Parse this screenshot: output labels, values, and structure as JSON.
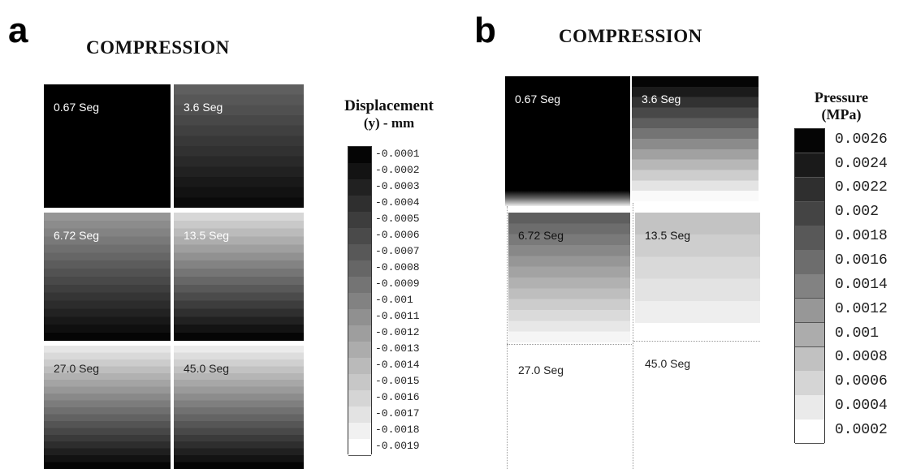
{
  "panel_a": {
    "letter": "a",
    "title": "COMPRESSION",
    "legend_title_line1": "Displacement",
    "legend_title_line2": "(y) - mm",
    "legend_labels": [
      "-0.0001",
      "-0.0002",
      "-0.0003",
      "-0.0004",
      "-0.0005",
      "-0.0006",
      "-0.0007",
      "-0.0008",
      "-0.0009",
      "-0.001",
      "-0.0011",
      "-0.0012",
      "-0.0013",
      "-0.0014",
      "-0.0015",
      "-0.0016",
      "-0.0017",
      "-0.0018",
      "-0.0019"
    ],
    "tiles": [
      {
        "label": "0.67 Seg"
      },
      {
        "label": "3.6 Seg"
      },
      {
        "label": "6.72 Seg"
      },
      {
        "label": "13.5 Seg"
      },
      {
        "label": "27.0 Seg"
      },
      {
        "label": "45.0 Seg"
      }
    ]
  },
  "panel_b": {
    "letter": "b",
    "title": "COMPRESSION",
    "legend_title_line1": "Pressure",
    "legend_title_line2": "(MPa)",
    "legend_labels": [
      "0.0026",
      "0.0024",
      "0.0022",
      "0.002",
      "0.0018",
      "0.0016",
      "0.0014",
      "0.0012",
      "0.001",
      "0.0008",
      "0.0006",
      "0.0004",
      "0.0002"
    ],
    "tiles": [
      {
        "label": "0.67 Seg"
      },
      {
        "label": "3.6 Seg"
      },
      {
        "label": "6.72 Seg"
      },
      {
        "label": "13.5 Seg"
      },
      {
        "label": "27.0 Seg"
      },
      {
        "label": "45.0 Seg"
      }
    ]
  }
}
